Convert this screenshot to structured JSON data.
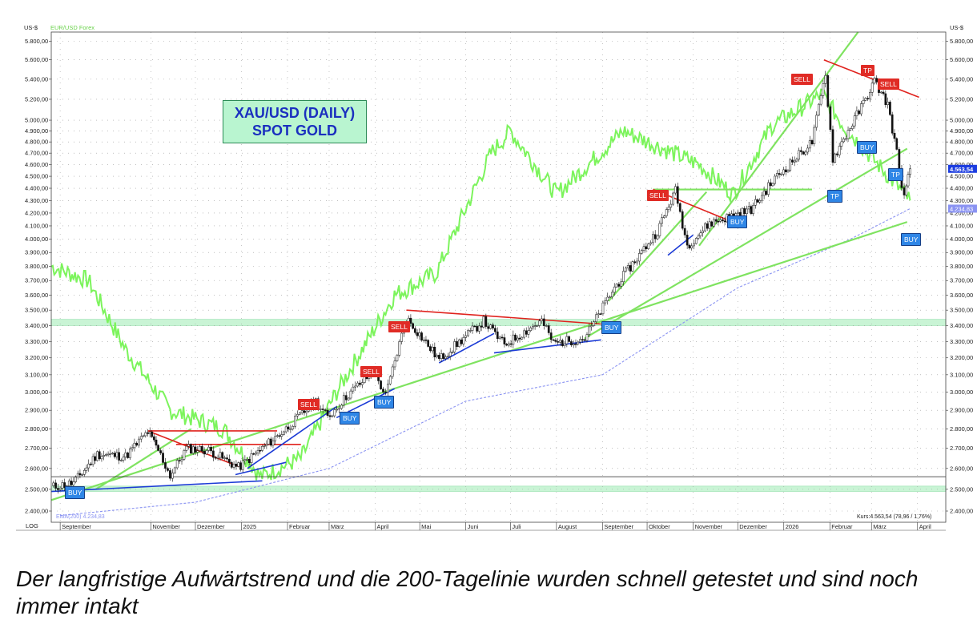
{
  "chart_data": {
    "type": "line",
    "scale": "log",
    "title": "XAU/USD (DAILY)",
    "subtitle": "SPOT GOLD",
    "ylabel": "US-$",
    "right_ylabel": "US-$",
    "overlay_label": "EUR/USD Forex",
    "log_label": "LOG",
    "ylim": [
      2350,
      5900
    ],
    "yticks": [
      "2.400,00",
      "2.500,00",
      "2.600,00",
      "2.700,00",
      "2.800,00",
      "2.900,00",
      "3.000,00",
      "3.100,00",
      "3.200,00",
      "3.300,00",
      "3.400,00",
      "3.500,00",
      "3.600,00",
      "3.700,00",
      "3.800,00",
      "3.900,00",
      "4.000,00",
      "4.100,00",
      "4.200,00",
      "4.300,00",
      "4.400,00",
      "4.500,00",
      "4.600,00",
      "4.700,00",
      "4.800,00",
      "4.900,00",
      "5.000,00",
      "5.200,00",
      "5.400,00",
      "5.600,00",
      "5.800,00"
    ],
    "months": [
      {
        "label": "September",
        "x": "2024-09-01"
      },
      {
        "label": "November",
        "x": "2024-11-01"
      },
      {
        "label": "Dezember",
        "x": "2024-12-01"
      },
      {
        "label": "2025",
        "x": "2025-01-01"
      },
      {
        "label": "Februar",
        "x": "2025-02-01"
      },
      {
        "label": "März",
        "x": "2025-03-01"
      },
      {
        "label": "April",
        "x": "2025-04-01"
      },
      {
        "label": "Mai",
        "x": "2025-05-01"
      },
      {
        "label": "Juni",
        "x": "2025-06-01"
      },
      {
        "label": "Juli",
        "x": "2025-07-01"
      },
      {
        "label": "August",
        "x": "2025-08-01"
      },
      {
        "label": "September",
        "x": "2025-09-01"
      },
      {
        "label": "Oktober",
        "x": "2025-10-01"
      },
      {
        "label": "November",
        "x": "2025-11-01"
      },
      {
        "label": "Dezember",
        "x": "2025-12-01"
      },
      {
        "label": "2026",
        "x": "2026-01-01"
      },
      {
        "label": "Februar",
        "x": "2026-02-01"
      },
      {
        "label": "März",
        "x": "2026-03-01"
      },
      {
        "label": "April",
        "x": "2026-04-01"
      }
    ],
    "gold_close": [
      {
        "x": "2024-08-26",
        "y": 2510
      },
      {
        "x": "2024-09-10",
        "y": 2530
      },
      {
        "x": "2024-09-26",
        "y": 2670
      },
      {
        "x": "2024-10-15",
        "y": 2660
      },
      {
        "x": "2024-10-30",
        "y": 2785
      },
      {
        "x": "2024-11-06",
        "y": 2690
      },
      {
        "x": "2024-11-14",
        "y": 2565
      },
      {
        "x": "2024-11-25",
        "y": 2700
      },
      {
        "x": "2024-12-10",
        "y": 2690
      },
      {
        "x": "2024-12-30",
        "y": 2605
      },
      {
        "x": "2025-01-15",
        "y": 2700
      },
      {
        "x": "2025-01-31",
        "y": 2800
      },
      {
        "x": "2025-02-20",
        "y": 2950
      },
      {
        "x": "2025-02-28",
        "y": 2860
      },
      {
        "x": "2025-03-14",
        "y": 2990
      },
      {
        "x": "2025-03-31",
        "y": 3120
      },
      {
        "x": "2025-04-08",
        "y": 2980
      },
      {
        "x": "2025-04-22",
        "y": 3450
      },
      {
        "x": "2025-05-14",
        "y": 3190
      },
      {
        "x": "2025-06-13",
        "y": 3430
      },
      {
        "x": "2025-06-27",
        "y": 3280
      },
      {
        "x": "2025-07-22",
        "y": 3430
      },
      {
        "x": "2025-07-30",
        "y": 3290
      },
      {
        "x": "2025-08-20",
        "y": 3320
      },
      {
        "x": "2025-09-09",
        "y": 3650
      },
      {
        "x": "2025-10-08",
        "y": 4060
      },
      {
        "x": "2025-10-20",
        "y": 4380
      },
      {
        "x": "2025-10-28",
        "y": 3950
      },
      {
        "x": "2025-11-12",
        "y": 4120
      },
      {
        "x": "2025-12-10",
        "y": 4230
      },
      {
        "x": "2025-12-26",
        "y": 4480
      },
      {
        "x": "2026-01-20",
        "y": 4800
      },
      {
        "x": "2026-01-29",
        "y": 5450
      },
      {
        "x": "2026-02-03",
        "y": 4650
      },
      {
        "x": "2026-02-25",
        "y": 5200
      },
      {
        "x": "2026-03-03",
        "y": 5380
      },
      {
        "x": "2026-03-12",
        "y": 5150
      },
      {
        "x": "2026-03-18",
        "y": 4700
      },
      {
        "x": "2026-03-23",
        "y": 4320
      },
      {
        "x": "2026-03-27",
        "y": 4563.54
      }
    ],
    "ema": {
      "label": "EMA(200) 4.234,83",
      "values": [
        {
          "x": "2024-09-01",
          "y": 2380
        },
        {
          "x": "2024-12-01",
          "y": 2440
        },
        {
          "x": "2025-03-01",
          "y": 2600
        },
        {
          "x": "2025-06-01",
          "y": 2950
        },
        {
          "x": "2025-09-01",
          "y": 3100
        },
        {
          "x": "2025-12-01",
          "y": 3650
        },
        {
          "x": "2026-02-15",
          "y": 4000
        },
        {
          "x": "2026-03-27",
          "y": 4234.83
        }
      ]
    },
    "eurusd_overlay": [
      {
        "x": "2024-08-26",
        "y": 3800
      },
      {
        "x": "2024-09-20",
        "y": 3700
      },
      {
        "x": "2024-10-15",
        "y": 3250
      },
      {
        "x": "2024-11-14",
        "y": 2900
      },
      {
        "x": "2024-12-20",
        "y": 2800
      },
      {
        "x": "2025-01-14",
        "y": 2560
      },
      {
        "x": "2025-02-10",
        "y": 2650
      },
      {
        "x": "2025-03-06",
        "y": 3000
      },
      {
        "x": "2025-04-14",
        "y": 3600
      },
      {
        "x": "2025-05-12",
        "y": 3750
      },
      {
        "x": "2025-06-18",
        "y": 4700
      },
      {
        "x": "2025-07-01",
        "y": 4900
      },
      {
        "x": "2025-08-01",
        "y": 4350
      },
      {
        "x": "2025-09-15",
        "y": 4900
      },
      {
        "x": "2025-11-05",
        "y": 4600
      },
      {
        "x": "2025-11-28",
        "y": 4350
      },
      {
        "x": "2025-12-24",
        "y": 4950
      },
      {
        "x": "2026-01-27",
        "y": 5250
      },
      {
        "x": "2026-02-10",
        "y": 4950
      },
      {
        "x": "2026-03-27",
        "y": 4300
      }
    ],
    "annotations": [
      {
        "type": "sell",
        "label": "SELL",
        "x": "2025-02-08",
        "y": 2930
      },
      {
        "type": "sell",
        "label": "SELL",
        "x": "2025-03-22",
        "y": 3120
      },
      {
        "type": "sell",
        "label": "SELL",
        "x": "2025-04-10",
        "y": 3390
      },
      {
        "type": "sell",
        "label": "SELL",
        "x": "2025-10-01",
        "y": 4340
      },
      {
        "type": "sell",
        "label": "SELL",
        "x": "2026-01-06",
        "y": 5400
      },
      {
        "type": "tp_red",
        "label": "TP",
        "x": "2026-02-22",
        "y": 5490
      },
      {
        "type": "sell",
        "label": "SELL",
        "x": "2026-03-05",
        "y": 5350
      },
      {
        "type": "buy",
        "label": "BUY",
        "x": "2024-09-04",
        "y": 2490
      },
      {
        "type": "buy",
        "label": "BUY",
        "x": "2025-03-08",
        "y": 2860
      },
      {
        "type": "buy",
        "label": "BUY",
        "x": "2025-03-31",
        "y": 2950
      },
      {
        "type": "buy",
        "label": "BUY",
        "x": "2025-08-31",
        "y": 3390
      },
      {
        "type": "buy",
        "label": "BUY",
        "x": "2025-11-24",
        "y": 4140
      },
      {
        "type": "buy",
        "label": "BUY",
        "x": "2026-02-19",
        "y": 4760
      },
      {
        "type": "tp_blue",
        "label": "TP",
        "x": "2026-01-30",
        "y": 4340
      },
      {
        "type": "tp_blue",
        "label": "TP",
        "x": "2026-03-12",
        "y": 4520
      },
      {
        "type": "buy",
        "label": "BUY",
        "x": "2026-03-21",
        "y": 4000
      }
    ],
    "trendlines": {
      "green": [
        [
          {
            "x": "2024-08-26",
            "y": 2450
          },
          {
            "x": "2026-03-25",
            "y": 4130
          }
        ],
        [
          {
            "x": "2025-08-20",
            "y": 3320
          },
          {
            "x": "2026-03-25",
            "y": 4740
          }
        ],
        [
          {
            "x": "2025-09-05",
            "y": 3560
          },
          {
            "x": "2025-11-10",
            "y": 4370
          }
        ],
        [
          {
            "x": "2025-11-05",
            "y": 3950
          },
          {
            "x": "2026-02-20",
            "y": 5900
          }
        ],
        [
          {
            "x": "2025-10-05",
            "y": 4390
          },
          {
            "x": "2026-01-20",
            "y": 4390
          }
        ],
        [
          {
            "x": "2024-09-25",
            "y": 2500
          },
          {
            "x": "2024-11-28",
            "y": 2800
          }
        ]
      ],
      "red": [
        [
          {
            "x": "2024-10-30",
            "y": 2790
          },
          {
            "x": "2025-01-25",
            "y": 2790
          }
        ],
        [
          {
            "x": "2024-11-18",
            "y": 2720
          },
          {
            "x": "2025-02-10",
            "y": 2720
          }
        ],
        [
          {
            "x": "2024-10-30",
            "y": 2790
          },
          {
            "x": "2024-12-30",
            "y": 2610
          }
        ],
        [
          {
            "x": "2025-04-22",
            "y": 3500
          },
          {
            "x": "2025-08-31",
            "y": 3410
          }
        ],
        [
          {
            "x": "2025-10-05",
            "y": 4390
          },
          {
            "x": "2025-12-06",
            "y": 4090
          }
        ],
        [
          {
            "x": "2026-01-28",
            "y": 5600
          },
          {
            "x": "2026-04-02",
            "y": 5220
          }
        ]
      ],
      "blue": [
        [
          {
            "x": "2024-08-26",
            "y": 2490
          },
          {
            "x": "2025-01-15",
            "y": 2540
          }
        ],
        [
          {
            "x": "2024-12-28",
            "y": 2570
          },
          {
            "x": "2025-01-31",
            "y": 2630
          }
        ],
        [
          {
            "x": "2025-01-05",
            "y": 2600
          },
          {
            "x": "2025-03-06",
            "y": 2920
          }
        ],
        [
          {
            "x": "2025-03-06",
            "y": 2860
          },
          {
            "x": "2025-04-14",
            "y": 3020
          }
        ],
        [
          {
            "x": "2025-05-14",
            "y": 3170
          },
          {
            "x": "2025-06-20",
            "y": 3350
          }
        ],
        [
          {
            "x": "2025-06-20",
            "y": 3230
          },
          {
            "x": "2025-08-31",
            "y": 3310
          }
        ],
        [
          {
            "x": "2025-10-15",
            "y": 3880
          },
          {
            "x": "2025-11-01",
            "y": 4030
          }
        ]
      ],
      "black": [
        [
          {
            "x": "2024-08-26",
            "y": 2560
          },
          {
            "x": "2026-04-20",
            "y": 2560
          }
        ]
      ]
    },
    "zones": [
      {
        "from": 2490,
        "to": 2515
      },
      {
        "from": 3400,
        "to": 3440
      }
    ],
    "price_labels": {
      "last": "4.563,54",
      "ema": "4.234,83"
    },
    "status": "Kurs:4.563,54 (78,96 / 1,76%)",
    "colors": {
      "candles": "#111111",
      "overlay": "#7cf45c",
      "green_lines": "#7fe360",
      "red_lines": "#e0231e",
      "blue_lines": "#1d3cd6",
      "ema": "#8a93f2",
      "zone": "#b7f1c8",
      "last_price": "#1b3ce0"
    }
  },
  "caption": "Der langfristige Aufwärtstrend und die 200-Tagelinie wurden schnell getestet und sind noch immer intakt"
}
